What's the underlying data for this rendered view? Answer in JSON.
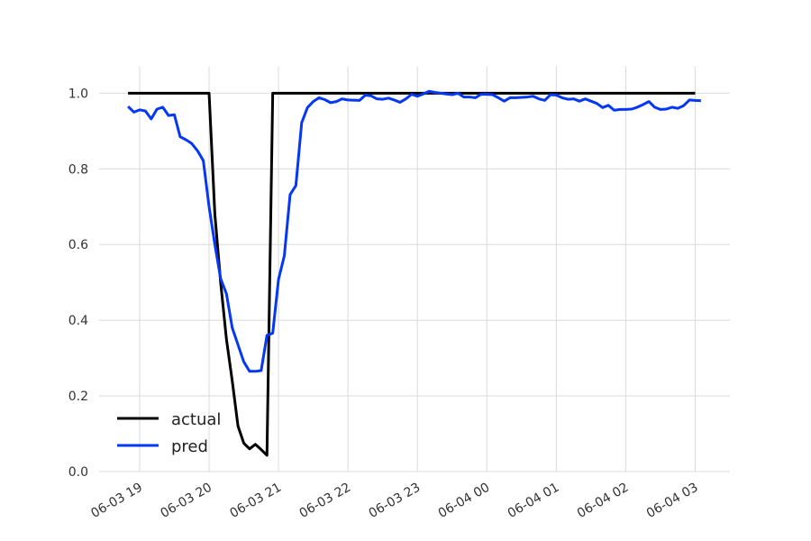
{
  "chart_data": {
    "type": "line",
    "title": "",
    "xlabel": "",
    "ylabel": "",
    "x_unit": "minutes",
    "x_ticks": [
      {
        "label": "06-03 19",
        "x": 0
      },
      {
        "label": "06-03 20",
        "x": 60
      },
      {
        "label": "06-03 21",
        "x": 120
      },
      {
        "label": "06-03 22",
        "x": 180
      },
      {
        "label": "06-03 23",
        "x": 240
      },
      {
        "label": "06-04 00",
        "x": 300
      },
      {
        "label": "06-04 01",
        "x": 360
      },
      {
        "label": "06-04 02",
        "x": 420
      },
      {
        "label": "06-04 03",
        "x": 480
      }
    ],
    "y_ticks": [
      {
        "label": "0.0",
        "y": 0.0
      },
      {
        "label": "0.2",
        "y": 0.2
      },
      {
        "label": "0.4",
        "y": 0.4
      },
      {
        "label": "0.6",
        "y": 0.6
      },
      {
        "label": "0.8",
        "y": 0.8
      },
      {
        "label": "1.0",
        "y": 1.0
      }
    ],
    "xlim": [
      -35,
      510
    ],
    "ylim": [
      0.0,
      1.07
    ],
    "grid": true,
    "legend_position": "lower-left",
    "series": [
      {
        "name": "actual",
        "color": "#000000",
        "points": [
          [
            -10,
            1.0
          ],
          [
            60,
            1.0
          ],
          [
            65,
            0.68
          ],
          [
            70,
            0.5
          ],
          [
            75,
            0.35
          ],
          [
            80,
            0.24
          ],
          [
            85,
            0.12
          ],
          [
            90,
            0.075
          ],
          [
            95,
            0.06
          ],
          [
            100,
            0.072
          ],
          [
            105,
            0.058
          ],
          [
            110,
            0.043
          ],
          [
            115,
            1.0
          ],
          [
            480,
            1.0
          ]
        ]
      },
      {
        "name": "pred",
        "color": "#0538f5",
        "points": [
          [
            -10,
            0.965
          ],
          [
            -5,
            0.95
          ],
          [
            0,
            0.956
          ],
          [
            5,
            0.953
          ],
          [
            10,
            0.932
          ],
          [
            15,
            0.958
          ],
          [
            20,
            0.963
          ],
          [
            25,
            0.941
          ],
          [
            30,
            0.943
          ],
          [
            35,
            0.885
          ],
          [
            40,
            0.877
          ],
          [
            45,
            0.867
          ],
          [
            50,
            0.848
          ],
          [
            55,
            0.822
          ],
          [
            60,
            0.7
          ],
          [
            65,
            0.6
          ],
          [
            70,
            0.51
          ],
          [
            75,
            0.47
          ],
          [
            80,
            0.38
          ],
          [
            85,
            0.335
          ],
          [
            90,
            0.29
          ],
          [
            95,
            0.265
          ],
          [
            100,
            0.265
          ],
          [
            105,
            0.267
          ],
          [
            110,
            0.36
          ],
          [
            115,
            0.366
          ],
          [
            120,
            0.508
          ],
          [
            125,
            0.57
          ],
          [
            130,
            0.732
          ],
          [
            135,
            0.756
          ],
          [
            140,
            0.922
          ],
          [
            145,
            0.962
          ],
          [
            150,
            0.978
          ],
          [
            155,
            0.988
          ],
          [
            160,
            0.983
          ],
          [
            165,
            0.975
          ],
          [
            170,
            0.978
          ],
          [
            175,
            0.985
          ],
          [
            180,
            0.982
          ],
          [
            190,
            0.981
          ],
          [
            195,
            0.995
          ],
          [
            200,
            0.993
          ],
          [
            205,
            0.985
          ],
          [
            210,
            0.984
          ],
          [
            215,
            0.987
          ],
          [
            220,
            0.982
          ],
          [
            225,
            0.976
          ],
          [
            230,
            0.985
          ],
          [
            235,
            0.997
          ],
          [
            240,
            0.992
          ],
          [
            245,
            0.998
          ],
          [
            250,
            1.005
          ],
          [
            255,
            1.002
          ],
          [
            260,
            1.0
          ],
          [
            265,
            0.998
          ],
          [
            270,
            0.996
          ],
          [
            275,
            1.0
          ],
          [
            280,
            0.99
          ],
          [
            285,
            0.99
          ],
          [
            290,
            0.988
          ],
          [
            295,
            0.997
          ],
          [
            300,
            0.997
          ],
          [
            305,
            0.996
          ],
          [
            310,
            0.988
          ],
          [
            315,
            0.979
          ],
          [
            320,
            0.988
          ],
          [
            325,
            0.988
          ],
          [
            330,
            0.989
          ],
          [
            335,
            0.99
          ],
          [
            340,
            0.992
          ],
          [
            345,
            0.985
          ],
          [
            350,
            0.981
          ],
          [
            355,
            0.996
          ],
          [
            360,
            0.995
          ],
          [
            365,
            0.988
          ],
          [
            370,
            0.984
          ],
          [
            375,
            0.985
          ],
          [
            380,
            0.979
          ],
          [
            385,
            0.985
          ],
          [
            390,
            0.979
          ],
          [
            395,
            0.973
          ],
          [
            400,
            0.962
          ],
          [
            405,
            0.968
          ],
          [
            410,
            0.955
          ],
          [
            415,
            0.957
          ],
          [
            420,
            0.957
          ],
          [
            425,
            0.958
          ],
          [
            430,
            0.963
          ],
          [
            435,
            0.97
          ],
          [
            440,
            0.978
          ],
          [
            445,
            0.963
          ],
          [
            450,
            0.957
          ],
          [
            455,
            0.958
          ],
          [
            460,
            0.963
          ],
          [
            465,
            0.96
          ],
          [
            470,
            0.967
          ],
          [
            475,
            0.982
          ],
          [
            480,
            0.981
          ],
          [
            485,
            0.98
          ]
        ]
      }
    ]
  }
}
